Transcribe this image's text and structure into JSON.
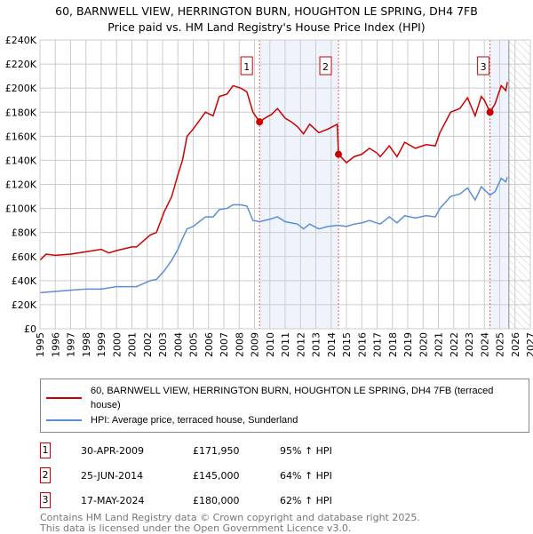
{
  "chart_data": {
    "type": "line",
    "title": "60, BARNWELL VIEW, HERRINGTON BURN, HOUGHTON LE SPRING, DH4 7FB",
    "subtitle": "Price paid vs. HM Land Registry's House Price Index (HPI)",
    "xlim": [
      1995,
      2027
    ],
    "ylim": [
      0,
      240000
    ],
    "x_ticks": [
      "1995",
      "1996",
      "1997",
      "1998",
      "1999",
      "2000",
      "2001",
      "2002",
      "2003",
      "2004",
      "2005",
      "2006",
      "2007",
      "2008",
      "2009",
      "2010",
      "2011",
      "2012",
      "2013",
      "2014",
      "2015",
      "2016",
      "2017",
      "2018",
      "2019",
      "2020",
      "2021",
      "2022",
      "2023",
      "2024",
      "2025",
      "2026",
      "2027"
    ],
    "y_ticks": [
      {
        "v": 0,
        "l": "£0"
      },
      {
        "v": 20000,
        "l": "£20K"
      },
      {
        "v": 40000,
        "l": "£40K"
      },
      {
        "v": 60000,
        "l": "£60K"
      },
      {
        "v": 80000,
        "l": "£80K"
      },
      {
        "v": 100000,
        "l": "£100K"
      },
      {
        "v": 120000,
        "l": "£120K"
      },
      {
        "v": 140000,
        "l": "£140K"
      },
      {
        "v": 160000,
        "l": "£160K"
      },
      {
        "v": 180000,
        "l": "£180K"
      },
      {
        "v": 200000,
        "l": "£200K"
      },
      {
        "v": 220000,
        "l": "£220K"
      },
      {
        "v": 240000,
        "l": "£240K"
      }
    ],
    "series": [
      {
        "name": "60, BARNWELL VIEW, HERRINGTON BURN, HOUGHTON LE SPRING, DH4 7FB (terraced house)",
        "color": "#cc0000",
        "x": [
          1995,
          1995.4,
          1996,
          1997,
          1998,
          1999,
          1999.5,
          2000,
          2001,
          2001.3,
          2002.2,
          2002.6,
          2003.1,
          2003.6,
          2004,
          2004.3,
          2004.6,
          2005,
          2005.8,
          2006.3,
          2006.7,
          2007.2,
          2007.6,
          2008.1,
          2008.5,
          2008.9,
          2009.33,
          2009.8,
          2010.1,
          2010.5,
          2011,
          2011.4,
          2011.8,
          2012.2,
          2012.6,
          2013.2,
          2013.8,
          2014.4,
          2014.48,
          2015.0,
          2015.5,
          2016,
          2016.5,
          2017,
          2017.2,
          2017.8,
          2018.3,
          2018.8,
          2019.5,
          2020.2,
          2020.8,
          2021.1,
          2021.8,
          2022.4,
          2022.9,
          2023.4,
          2023.8,
          2024.0,
          2024.37,
          2024.7,
          2025.1,
          2025.4,
          2025.5
        ],
        "y": [
          57000,
          62000,
          61000,
          62000,
          64000,
          66000,
          63000,
          65000,
          68000,
          68000,
          78000,
          80000,
          97000,
          110000,
          128000,
          140000,
          160000,
          166000,
          180000,
          177000,
          193000,
          195000,
          202000,
          200000,
          197000,
          180000,
          171950,
          176000,
          178000,
          183000,
          175000,
          172000,
          168000,
          162000,
          170000,
          163000,
          166000,
          170000,
          145000,
          138000,
          143000,
          145000,
          150000,
          146000,
          143000,
          152000,
          143000,
          155000,
          150000,
          153000,
          152000,
          163000,
          180000,
          183000,
          192000,
          177000,
          193000,
          190000,
          180000,
          187000,
          202000,
          198000,
          205000
        ]
      },
      {
        "name": "HPI: Average price, terraced house, Sunderland",
        "color": "#5b8fd4",
        "x": [
          1995,
          1996,
          1997,
          1998,
          1999,
          2000,
          2001,
          2001.3,
          2002.2,
          2002.6,
          2003.1,
          2003.6,
          2004,
          2004.3,
          2004.6,
          2005,
          2005.8,
          2006.3,
          2006.7,
          2007.2,
          2007.6,
          2008.1,
          2008.5,
          2008.9,
          2009.33,
          2010,
          2010.5,
          2011,
          2011.4,
          2011.8,
          2012.2,
          2012.6,
          2013.2,
          2013.8,
          2014.48,
          2015.0,
          2015.5,
          2016,
          2016.5,
          2017.2,
          2017.8,
          2018.3,
          2018.8,
          2019.5,
          2020.2,
          2020.8,
          2021.1,
          2021.8,
          2022.4,
          2022.9,
          2023.4,
          2023.8,
          2024.37,
          2024.7,
          2025.1,
          2025.4,
          2025.5
        ],
        "y": [
          30000,
          31000,
          32000,
          33000,
          33000,
          35000,
          35000,
          35000,
          40000,
          41000,
          48000,
          57000,
          66000,
          75000,
          83000,
          85000,
          93000,
          93000,
          99000,
          100000,
          103000,
          103000,
          102000,
          90000,
          89000,
          91000,
          93000,
          89000,
          88000,
          87000,
          83000,
          87000,
          83000,
          85000,
          86000,
          85000,
          87000,
          88000,
          90000,
          87000,
          93000,
          88000,
          94000,
          92000,
          94000,
          93000,
          100000,
          110000,
          112000,
          117000,
          107000,
          118000,
          111000,
          114000,
          125000,
          122000,
          126000
        ]
      }
    ],
    "sales": [
      {
        "label": "1",
        "date": "30-APR-2009",
        "price": "£171,950",
        "hpi": "95% ↑ HPI",
        "x": 2009.33,
        "y": 171950
      },
      {
        "label": "2",
        "date": "25-JUN-2014",
        "price": "£145,000",
        "hpi": "64% ↑ HPI",
        "x": 2014.48,
        "y": 145000
      },
      {
        "label": "3",
        "date": "17-MAY-2024",
        "price": "£180,000",
        "hpi": "62% ↑ HPI",
        "x": 2024.37,
        "y": 180000
      }
    ],
    "forecast_start": 2025.6
  },
  "footer": {
    "line1": "Contains HM Land Registry data © Crown copyright and database right 2025.",
    "line2": "This data is licensed under the Open Government Licence v3.0."
  }
}
